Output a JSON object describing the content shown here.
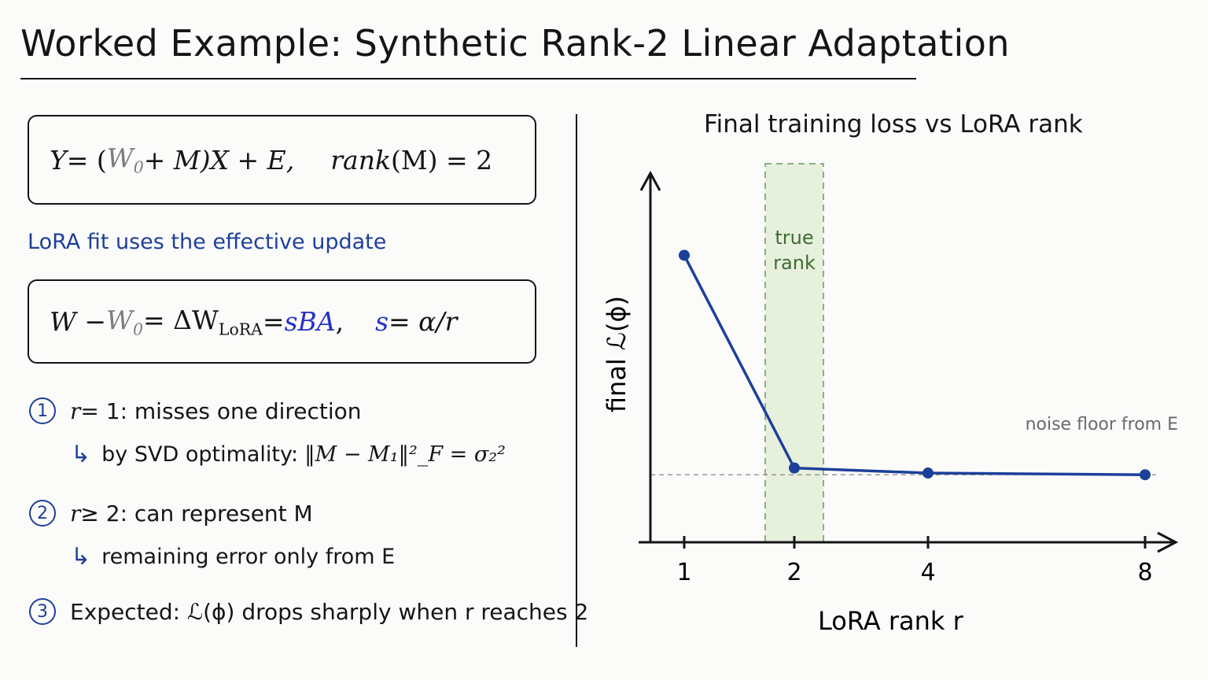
{
  "title": "Worked Example: Synthetic Rank-2 Linear Adaptation",
  "left": {
    "eq1": {
      "Y": "Y",
      "eqparen": " = (",
      "W0": "W",
      "W0sub": "0",
      "plusM": " + M)X + E,",
      "rank": "rank",
      "rankrest": "(M) = 2"
    },
    "caption": "LoRA fit uses the effective update",
    "eq2": {
      "W": "W − ",
      "W0": "W",
      "W0sub": "0",
      "eq": " = ΔW",
      "lora": "LoRA",
      "eq2b": " = ",
      "sBA": "sBA",
      "comma": ",",
      "s": "s",
      "rest": " = α/r"
    },
    "items": [
      {
        "num": "1",
        "prefix": "r",
        "text": " = 1: misses one direction"
      },
      {
        "num": "2",
        "prefix": "r",
        "text": " ≥ 2: can represent M"
      },
      {
        "num": "3",
        "prefix": "",
        "text": "Expected: ℒ(ϕ) drops sharply when r reaches 2"
      }
    ],
    "subs": [
      {
        "hook": "↳",
        "text": "by SVD optimality: ",
        "math": "‖M − M₁‖²_F = σ₂²"
      },
      {
        "hook": "↳",
        "text": "remaining error only from E",
        "math": ""
      }
    ]
  },
  "chart_data": {
    "type": "line",
    "title": "Final training loss vs LoRA rank",
    "xlabel": "LoRA rank  r",
    "ylabel": "final ℒ(ϕ)",
    "x_ticks": [
      "1",
      "2",
      "4",
      "8"
    ],
    "x_positions": [
      1,
      2,
      4,
      8
    ],
    "series": [
      {
        "values": [
          0.85,
          0.22,
          0.205,
          0.2
        ]
      }
    ],
    "ylim": [
      0,
      1
    ],
    "noise_floor": 0.2,
    "noise_floor_label": "noise floor from E",
    "highlight_label": [
      "true",
      "rank"
    ],
    "colors": {
      "line": "#1c409a",
      "highlight": "#e7f0dd",
      "highlight_border": "#6a9a5a",
      "highlight_text": "#3d6b32",
      "floor": "#7a7a7a"
    }
  }
}
